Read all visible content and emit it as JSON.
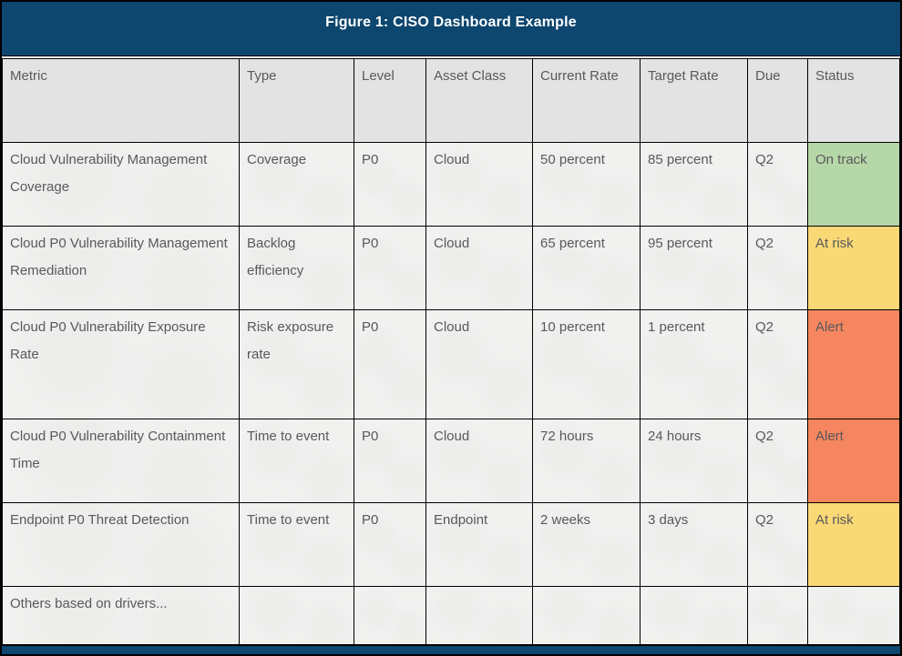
{
  "title": "Figure 1: CISO Dashboard Example",
  "colors": {
    "title_bar": "#0d466e",
    "header_bg": "#e3e3e3",
    "cell_bg": "#f1f1f0",
    "text": "#595959",
    "border": "#000000",
    "status": {
      "on_track": "#b6d7a8",
      "at_risk": "#f9d876",
      "alert": "#f5865f"
    }
  },
  "table": {
    "columns": [
      {
        "key": "metric",
        "label": "Metric"
      },
      {
        "key": "type",
        "label": "Type"
      },
      {
        "key": "level",
        "label": "Level"
      },
      {
        "key": "asset",
        "label": "Asset Class"
      },
      {
        "key": "current",
        "label": "Current Rate"
      },
      {
        "key": "target",
        "label": "Target Rate"
      },
      {
        "key": "due",
        "label": "Due"
      },
      {
        "key": "status",
        "label": "Status"
      }
    ],
    "rows": [
      {
        "cells": [
          "Cloud Vulnerability Management Coverage",
          "Coverage",
          "P0",
          "Cloud",
          "50 percent",
          "85 percent",
          "Q2",
          "On track"
        ],
        "status_key": "on_track",
        "lines": 2
      },
      {
        "cells": [
          "Cloud P0 Vulnerability Management Remediation",
          "Backlog efficiency",
          "P0",
          "Cloud",
          "65 percent",
          "95 percent",
          "Q2",
          "At risk"
        ],
        "status_key": "at_risk",
        "lines": 2
      },
      {
        "cells": [
          "Cloud P0 Vulnerability Exposure Rate",
          "Risk exposure rate",
          "P0",
          "Cloud",
          "10 percent",
          "1 percent",
          "Q2",
          "Alert"
        ],
        "status_key": "alert",
        "lines": 3
      },
      {
        "cells": [
          "Cloud P0 Vulnerability Containment Time",
          "Time to event",
          "P0",
          "Cloud",
          "72 hours",
          "24 hours",
          "Q2",
          "Alert"
        ],
        "status_key": "alert",
        "lines": 2
      },
      {
        "cells": [
          "Endpoint P0 Threat Detection",
          "Time to event",
          "P0",
          "Endpoint",
          "2 weeks",
          "3 days",
          "Q2",
          "At risk"
        ],
        "status_key": "at_risk",
        "lines": 2
      },
      {
        "cells": [
          "Others based on drivers...",
          "",
          "",
          "",
          "",
          "",
          "",
          ""
        ],
        "status_key": "none",
        "lines": 1
      }
    ]
  }
}
